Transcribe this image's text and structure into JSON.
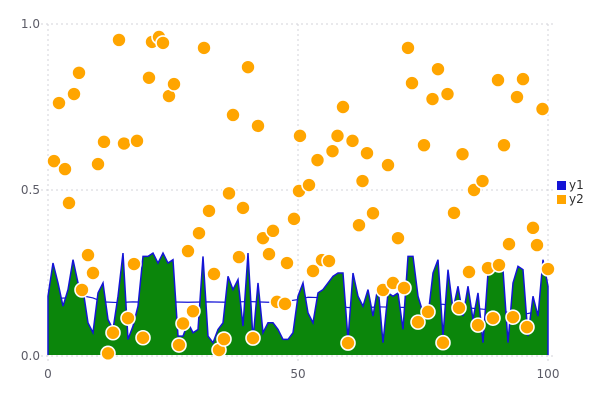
{
  "chart_data": {
    "type": "combo",
    "title": "",
    "x_axis": {
      "label": "",
      "range": [
        0,
        100
      ],
      "tick_values": [
        0,
        50,
        100
      ],
      "tick_labels": [
        "0",
        "50",
        "100"
      ]
    },
    "y_axis": {
      "label": "",
      "range": [
        0,
        1
      ],
      "tick_values": [
        0,
        0.5,
        1
      ],
      "tick_labels": [
        "0.0",
        "0.5",
        "1.0"
      ]
    },
    "grid": {
      "visible": true,
      "style": "dashed",
      "color": "#d3d3da"
    },
    "colors": {
      "blue": "#1414d6",
      "green": "#0b860b",
      "orange": "#ffa500",
      "marker_edge": "#ffffff",
      "tick_text": "#5b5b66"
    },
    "legend": {
      "position": "outside-right-center",
      "entries": [
        {
          "label": "y1",
          "color": "#1414d6",
          "marker": "square"
        },
        {
          "label": "y2",
          "color": "#ffa500",
          "marker": "square"
        }
      ]
    },
    "series": [
      {
        "name": "y1-area",
        "type": "area",
        "fill_color": "#0b860b",
        "edge_color": "#1414d6",
        "x_start": 0,
        "x_step": 1,
        "values": [
          0.18,
          0.28,
          0.22,
          0.15,
          0.2,
          0.29,
          0.22,
          0.2,
          0.1,
          0.07,
          0.19,
          0.22,
          0.11,
          0.08,
          0.18,
          0.31,
          0.05,
          0.09,
          0.15,
          0.3,
          0.3,
          0.31,
          0.28,
          0.31,
          0.28,
          0.29,
          0.06,
          0.06,
          0.1,
          0.07,
          0.08,
          0.3,
          0.06,
          0.04,
          0.08,
          0.1,
          0.24,
          0.2,
          0.23,
          0.09,
          0.31,
          0.05,
          0.22,
          0.07,
          0.1,
          0.1,
          0.08,
          0.05,
          0.05,
          0.07,
          0.18,
          0.22,
          0.13,
          0.1,
          0.19,
          0.2,
          0.22,
          0.24,
          0.25,
          0.25,
          0.05,
          0.25,
          0.18,
          0.15,
          0.2,
          0.12,
          0.21,
          0.04,
          0.19,
          0.18,
          0.19,
          0.08,
          0.3,
          0.3,
          0.18,
          0.13,
          0.12,
          0.25,
          0.29,
          0.06,
          0.26,
          0.14,
          0.21,
          0.12,
          0.21,
          0.11,
          0.19,
          0.04,
          0.25,
          0.28,
          0.27,
          0.26,
          0.04,
          0.22,
          0.27,
          0.26,
          0.06,
          0.18,
          0.12,
          0.29,
          0.21
        ]
      },
      {
        "name": "y1",
        "type": "line",
        "color": "#1414d6",
        "points": [
          [
            0,
            0.172
          ],
          [
            5,
            0.176
          ],
          [
            7,
            0.181
          ],
          [
            9,
            0.175
          ],
          [
            11,
            0.163
          ],
          [
            14,
            0.161
          ],
          [
            17,
            0.163
          ],
          [
            20,
            0.162
          ],
          [
            24,
            0.163
          ],
          [
            28,
            0.162
          ],
          [
            32,
            0.163
          ],
          [
            36,
            0.162
          ],
          [
            40,
            0.164
          ],
          [
            44,
            0.162
          ],
          [
            47,
            0.163
          ],
          [
            50,
            0.17
          ],
          [
            52,
            0.177
          ],
          [
            54,
            0.176
          ],
          [
            56,
            0.166
          ],
          [
            58,
            0.152
          ],
          [
            60,
            0.146
          ],
          [
            63,
            0.145
          ],
          [
            66,
            0.148
          ],
          [
            69,
            0.147
          ],
          [
            72,
            0.146
          ],
          [
            75,
            0.143
          ],
          [
            77,
            0.152
          ],
          [
            79,
            0.156
          ],
          [
            81,
            0.148
          ],
          [
            84,
            0.145
          ],
          [
            87,
            0.141
          ],
          [
            90,
            0.139
          ],
          [
            92,
            0.131
          ],
          [
            94,
            0.127
          ],
          [
            96,
            0.128
          ],
          [
            98,
            0.134
          ],
          [
            100,
            0.136
          ]
        ]
      },
      {
        "name": "y2",
        "type": "scatter",
        "color": "#ffa500",
        "edge_color": "#ffffff",
        "marker_radius": 7,
        "points": [
          [
            1.2,
            0.587
          ],
          [
            2.2,
            0.762
          ],
          [
            3.4,
            0.563
          ],
          [
            4.2,
            0.461
          ],
          [
            5.2,
            0.789
          ],
          [
            6.2,
            0.853
          ],
          [
            6.8,
            0.199
          ],
          [
            8,
            0.304
          ],
          [
            9,
            0.25
          ],
          [
            10,
            0.578
          ],
          [
            11.2,
            0.645
          ],
          [
            12,
            0.008
          ],
          [
            13,
            0.07
          ],
          [
            14.2,
            0.952
          ],
          [
            15.2,
            0.64
          ],
          [
            16,
            0.114
          ],
          [
            17.2,
            0.277
          ],
          [
            17.8,
            0.648
          ],
          [
            19,
            0.055
          ],
          [
            20.2,
            0.838
          ],
          [
            20.8,
            0.946
          ],
          [
            22.2,
            0.961
          ],
          [
            23,
            0.943
          ],
          [
            24.2,
            0.783
          ],
          [
            25.2,
            0.819
          ],
          [
            26.2,
            0.033
          ],
          [
            27,
            0.098
          ],
          [
            28,
            0.316
          ],
          [
            29,
            0.135
          ],
          [
            30.2,
            0.37
          ],
          [
            31.2,
            0.928
          ],
          [
            32.2,
            0.437
          ],
          [
            33.2,
            0.247
          ],
          [
            34.2,
            0.018
          ],
          [
            35.2,
            0.051
          ],
          [
            36.2,
            0.49
          ],
          [
            37,
            0.726
          ],
          [
            38.2,
            0.298
          ],
          [
            39,
            0.446
          ],
          [
            40,
            0.87
          ],
          [
            41,
            0.054
          ],
          [
            42,
            0.693
          ],
          [
            43,
            0.355
          ],
          [
            44.2,
            0.307
          ],
          [
            45,
            0.377
          ],
          [
            45.8,
            0.163
          ],
          [
            47.4,
            0.157
          ],
          [
            47.8,
            0.28
          ],
          [
            49.2,
            0.413
          ],
          [
            50.2,
            0.497
          ],
          [
            50.4,
            0.663
          ],
          [
            52.2,
            0.515
          ],
          [
            53,
            0.256
          ],
          [
            53.9,
            0.59
          ],
          [
            54.8,
            0.289
          ],
          [
            56.2,
            0.286
          ],
          [
            56.9,
            0.617
          ],
          [
            57.9,
            0.663
          ],
          [
            59,
            0.75
          ],
          [
            60,
            0.039
          ],
          [
            60.9,
            0.648
          ],
          [
            62.2,
            0.394
          ],
          [
            62.9,
            0.527
          ],
          [
            63.8,
            0.611
          ],
          [
            65,
            0.43
          ],
          [
            67,
            0.199
          ],
          [
            68,
            0.575
          ],
          [
            69,
            0.22
          ],
          [
            70,
            0.355
          ],
          [
            71.2,
            0.205
          ],
          [
            72,
            0.928
          ],
          [
            72.8,
            0.822
          ],
          [
            74,
            0.102
          ],
          [
            75.2,
            0.635
          ],
          [
            76,
            0.133
          ],
          [
            76.9,
            0.774
          ],
          [
            78,
            0.864
          ],
          [
            79,
            0.04
          ],
          [
            79.9,
            0.789
          ],
          [
            81.2,
            0.431
          ],
          [
            82.2,
            0.145
          ],
          [
            82.9,
            0.608
          ],
          [
            84.2,
            0.253
          ],
          [
            85.2,
            0.5
          ],
          [
            86,
            0.093
          ],
          [
            86.9,
            0.527
          ],
          [
            88,
            0.265
          ],
          [
            89,
            0.114
          ],
          [
            90,
            0.831
          ],
          [
            90.2,
            0.274
          ],
          [
            91.2,
            0.635
          ],
          [
            92.2,
            0.337
          ],
          [
            93,
            0.117
          ],
          [
            93.8,
            0.78
          ],
          [
            95,
            0.834
          ],
          [
            95.8,
            0.087
          ],
          [
            97,
            0.386
          ],
          [
            97.8,
            0.334
          ],
          [
            98.9,
            0.744
          ],
          [
            100,
            0.262
          ]
        ]
      }
    ]
  }
}
